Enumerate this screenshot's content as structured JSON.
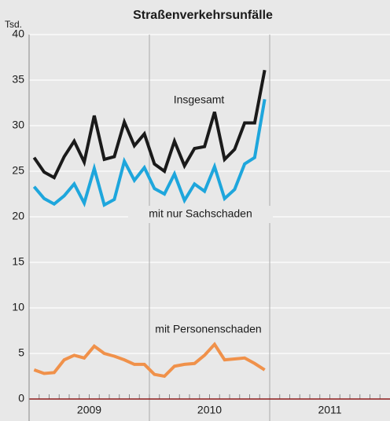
{
  "chart_data": {
    "type": "line",
    "title": "Straßenverkehrsunfälle",
    "y_label": "Tsd.",
    "categories": [
      null,
      null,
      null,
      null,
      null,
      null,
      null,
      null,
      null,
      null,
      null,
      null,
      null,
      null,
      null,
      null,
      null,
      null,
      null,
      null,
      null,
      null,
      null,
      null,
      null,
      null,
      null,
      null,
      null,
      null,
      null,
      null,
      null,
      null,
      null,
      null
    ],
    "year_labels": [
      "2009",
      "2010",
      "2011"
    ],
    "series": [
      {
        "name": "Insgesamt",
        "color": "#1a1a1a",
        "values": [
          26.5,
          24.9,
          24.3,
          26.6,
          28.3,
          26.0,
          31.1,
          26.3,
          26.6,
          30.4,
          27.8,
          29.1,
          25.8,
          25.0,
          28.3,
          25.6,
          27.5,
          27.7,
          31.5,
          26.3,
          27.4,
          30.3,
          30.3,
          36.1,
          null,
          null,
          null,
          null,
          null,
          null,
          null,
          null,
          null,
          null,
          null,
          null
        ]
      },
      {
        "name": "mit nur Sachschaden",
        "color": "#1ea6dc",
        "values": [
          23.3,
          22.0,
          21.4,
          22.3,
          23.6,
          21.5,
          25.3,
          21.3,
          21.9,
          26.1,
          24.0,
          25.4,
          23.1,
          22.5,
          24.7,
          21.8,
          23.6,
          22.8,
          25.5,
          22.0,
          23.0,
          25.8,
          26.5,
          32.9,
          null,
          null,
          null,
          null,
          null,
          null,
          null,
          null,
          null,
          null,
          null,
          null
        ]
      },
      {
        "name": "mit Personenschaden",
        "color": "#f0914a",
        "values": [
          3.2,
          2.8,
          2.9,
          4.3,
          4.8,
          4.5,
          5.8,
          5.0,
          4.7,
          4.3,
          3.8,
          3.8,
          2.7,
          2.5,
          3.6,
          3.8,
          3.9,
          4.8,
          6.0,
          4.3,
          4.4,
          4.5,
          3.9,
          3.2,
          null,
          null,
          null,
          null,
          null,
          null,
          null,
          null,
          null,
          null,
          null,
          null
        ]
      }
    ],
    "ylim": [
      0,
      40
    ],
    "yticks": [
      0,
      5,
      10,
      15,
      20,
      25,
      30,
      35,
      40
    ],
    "grid": true
  }
}
